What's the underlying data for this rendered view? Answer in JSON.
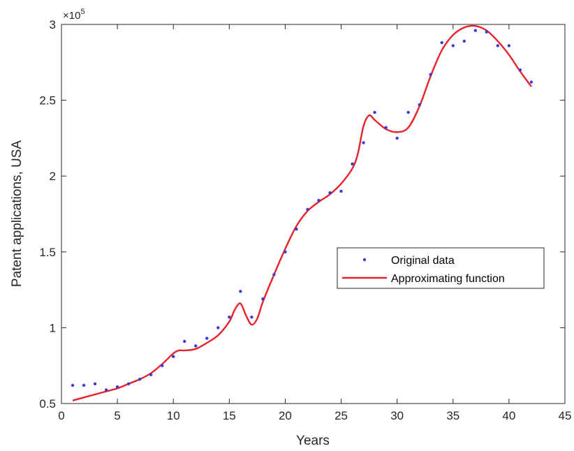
{
  "chart_data": {
    "type": "scatter",
    "xlabel": "Years",
    "ylabel": "Patent applications, USA",
    "xlim": [
      0,
      45
    ],
    "ylim": [
      0.5,
      3
    ],
    "y_multiplier": "×10",
    "y_exponent": "5",
    "grid": false,
    "legend_position": "center-right",
    "x_ticks": [
      0,
      5,
      10,
      15,
      20,
      25,
      30,
      35,
      40,
      45
    ],
    "y_ticks": [
      0.5,
      1,
      1.5,
      2,
      2.5,
      3
    ],
    "x_tick_labels": [
      "0",
      "5",
      "10",
      "15",
      "20",
      "25",
      "30",
      "35",
      "40",
      "45"
    ],
    "y_tick_labels": [
      "0.5",
      "1",
      "1.5",
      "2",
      "2.5",
      "3"
    ],
    "series": [
      {
        "name": "Original data",
        "type": "scatter",
        "color": "#3b3bd6",
        "points": [
          [
            1,
            0.62
          ],
          [
            2,
            0.62
          ],
          [
            3,
            0.63
          ],
          [
            4,
            0.59
          ],
          [
            5,
            0.61
          ],
          [
            6,
            0.63
          ],
          [
            7,
            0.66
          ],
          [
            8,
            0.69
          ],
          [
            9,
            0.75
          ],
          [
            10,
            0.81
          ],
          [
            11,
            0.91
          ],
          [
            12,
            0.88
          ],
          [
            13,
            0.93
          ],
          [
            14,
            1.0
          ],
          [
            15,
            1.07
          ],
          [
            16,
            1.24
          ],
          [
            17,
            1.07
          ],
          [
            18,
            1.19
          ],
          [
            19,
            1.35
          ],
          [
            20,
            1.5
          ],
          [
            21,
            1.65
          ],
          [
            22,
            1.78
          ],
          [
            23,
            1.84
          ],
          [
            24,
            1.89
          ],
          [
            25,
            1.9
          ],
          [
            26,
            2.08
          ],
          [
            27,
            2.22
          ],
          [
            28,
            2.42
          ],
          [
            29,
            2.32
          ],
          [
            30,
            2.25
          ],
          [
            31,
            2.42
          ],
          [
            32,
            2.47
          ],
          [
            33,
            2.67
          ],
          [
            34,
            2.88
          ],
          [
            35,
            2.86
          ],
          [
            36,
            2.89
          ],
          [
            37,
            2.96
          ],
          [
            38,
            2.95
          ],
          [
            39,
            2.86
          ],
          [
            40,
            2.86
          ],
          [
            41,
            2.7
          ],
          [
            42,
            2.62
          ]
        ]
      },
      {
        "name": "Approximating function",
        "type": "line",
        "color": "#e8222b",
        "points": [
          [
            1,
            0.52
          ],
          [
            2,
            0.54
          ],
          [
            3,
            0.56
          ],
          [
            4,
            0.58
          ],
          [
            5,
            0.6
          ],
          [
            6,
            0.63
          ],
          [
            7,
            0.66
          ],
          [
            8,
            0.7
          ],
          [
            9,
            0.76
          ],
          [
            10,
            0.83
          ],
          [
            10.5,
            0.85
          ],
          [
            11,
            0.85
          ],
          [
            12,
            0.86
          ],
          [
            13,
            0.9
          ],
          [
            14,
            0.95
          ],
          [
            15,
            1.04
          ],
          [
            15.5,
            1.12
          ],
          [
            16,
            1.16
          ],
          [
            16.5,
            1.08
          ],
          [
            17,
            1.02
          ],
          [
            17.5,
            1.06
          ],
          [
            18,
            1.17
          ],
          [
            19,
            1.35
          ],
          [
            20,
            1.52
          ],
          [
            21,
            1.67
          ],
          [
            22,
            1.77
          ],
          [
            23,
            1.83
          ],
          [
            24,
            1.88
          ],
          [
            25,
            1.95
          ],
          [
            26,
            2.05
          ],
          [
            26.5,
            2.15
          ],
          [
            27,
            2.33
          ],
          [
            27.5,
            2.4
          ],
          [
            28,
            2.37
          ],
          [
            29,
            2.31
          ],
          [
            30,
            2.29
          ],
          [
            31,
            2.32
          ],
          [
            32,
            2.46
          ],
          [
            33,
            2.66
          ],
          [
            34,
            2.83
          ],
          [
            35,
            2.93
          ],
          [
            36,
            2.98
          ],
          [
            37,
            2.99
          ],
          [
            38,
            2.96
          ],
          [
            39,
            2.89
          ],
          [
            40,
            2.8
          ],
          [
            41,
            2.69
          ],
          [
            42,
            2.59
          ]
        ]
      }
    ]
  }
}
